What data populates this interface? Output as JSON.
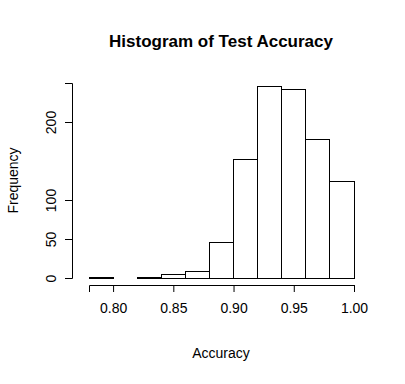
{
  "chart_data": {
    "type": "histogram",
    "title": "Histogram of Test Accuracy",
    "x_label": "Accuracy",
    "y_label": "Frequency",
    "bins": [
      0.78,
      0.8,
      0.82,
      0.84,
      0.86,
      0.88,
      0.9,
      0.92,
      0.94,
      0.96,
      0.98,
      1.0
    ],
    "values": [
      1,
      0,
      1,
      5,
      8,
      46,
      152,
      246,
      242,
      178,
      124
    ],
    "color": "#ffffff",
    "xlim": [
      0.78,
      1.0
    ],
    "xticks": [
      {
        "value": 0.8,
        "label": "0.80"
      },
      0.85,
      {
        "value": 0.9,
        "label": "0.90"
      },
      0.95,
      {
        "value": 1,
        "label": "1.00"
      }
    ],
    "ylim": [
      0,
      250
    ],
    "yticks": [
      0,
      50,
      100,
      200
    ],
    "grid": false
  }
}
